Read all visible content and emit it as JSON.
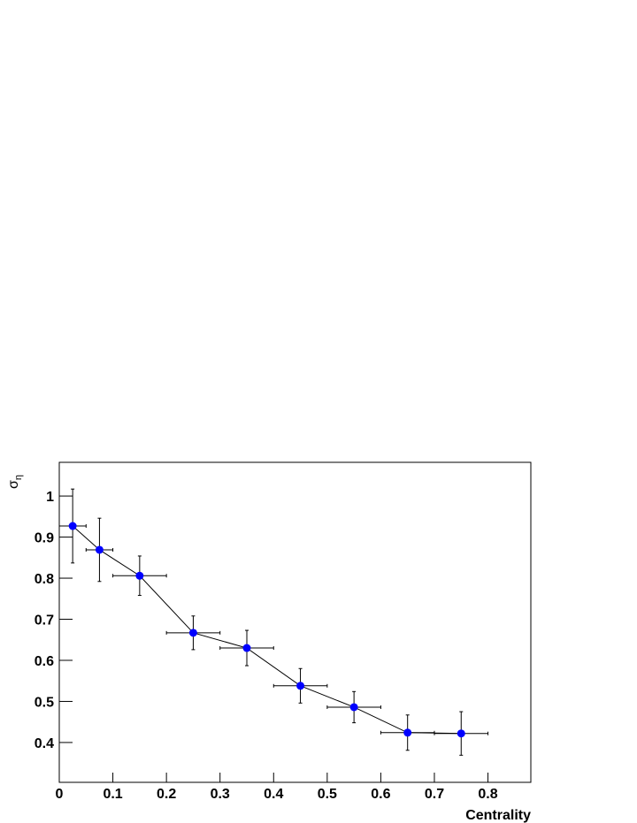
{
  "chart_data": {
    "type": "line",
    "x_label": "Centrality",
    "y_label": {
      "symbol": "σ",
      "subscript": "η"
    },
    "xlim": [
      0,
      0.88
    ],
    "ylim": [
      0.303,
      1.082
    ],
    "xticks": [
      0,
      0.1,
      0.2,
      0.3,
      0.4,
      0.5,
      0.6,
      0.7,
      0.8
    ],
    "yticks": [
      0.4,
      0.5,
      0.6,
      0.7,
      0.8,
      0.9,
      1
    ],
    "series": [
      {
        "color": "#0000ff",
        "x": [
          0.025,
          0.075,
          0.15,
          0.25,
          0.35,
          0.45,
          0.55,
          0.65,
          0.75
        ],
        "xerr": [
          0.025,
          0.025,
          0.05,
          0.05,
          0.05,
          0.05,
          0.05,
          0.05,
          0.05
        ],
        "values": [
          0.927,
          0.869,
          0.806,
          0.667,
          0.63,
          0.538,
          0.486,
          0.424,
          0.422
        ],
        "yerr": [
          0.09,
          0.077,
          0.048,
          0.041,
          0.043,
          0.042,
          0.038,
          0.043,
          0.053
        ]
      }
    ]
  }
}
